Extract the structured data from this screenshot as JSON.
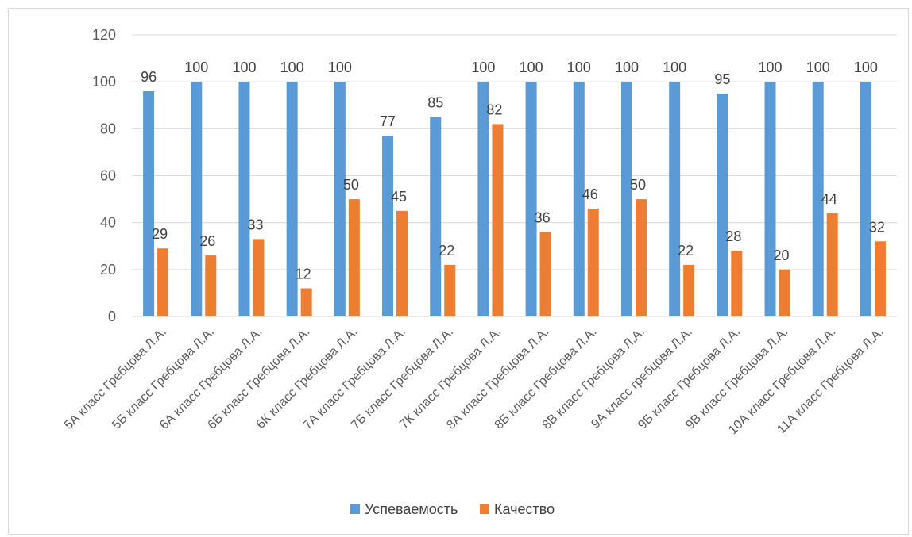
{
  "chart_data": {
    "type": "bar",
    "categories": [
      "5А класс Гребцова Л.А.",
      "5Б класс Гребцова Л.А.",
      "6А класс Гребцова Л.А.",
      "6Б класс Гребцова Л.А.",
      "6К класс Гребцова Л.А.",
      "7А класс Гребцова Л.А.",
      "7Б класс Гребцова Л.А.",
      "7К класс Гребцова Л.А.",
      "8А класс Гребцова Л.А.",
      "8Б класс Гребцова Л.А.",
      "8В класс Гребцова Л.А.",
      "9А класс гребцова Л.А.",
      "9Б класс Гребцова Л.А.",
      "9В класс Гребцова Л.А.",
      "10А класс Гребцова Л.А.",
      "11А класс Гребцова Л.А."
    ],
    "series": [
      {
        "name": "Успеваемость",
        "color": "#5b9bd5",
        "values": [
          96,
          100,
          100,
          100,
          100,
          77,
          85,
          100,
          100,
          100,
          100,
          100,
          95,
          100,
          100,
          100
        ]
      },
      {
        "name": "Качество",
        "color": "#ed7d31",
        "values": [
          29,
          26,
          33,
          12,
          50,
          45,
          22,
          82,
          36,
          46,
          50,
          22,
          28,
          20,
          44,
          32
        ]
      }
    ],
    "ylim": [
      0,
      120
    ],
    "yticks": [
      0,
      20,
      40,
      60,
      80,
      100,
      120
    ],
    "grid": true,
    "legend": "bottom",
    "title": "",
    "xlabel": "",
    "ylabel": ""
  }
}
